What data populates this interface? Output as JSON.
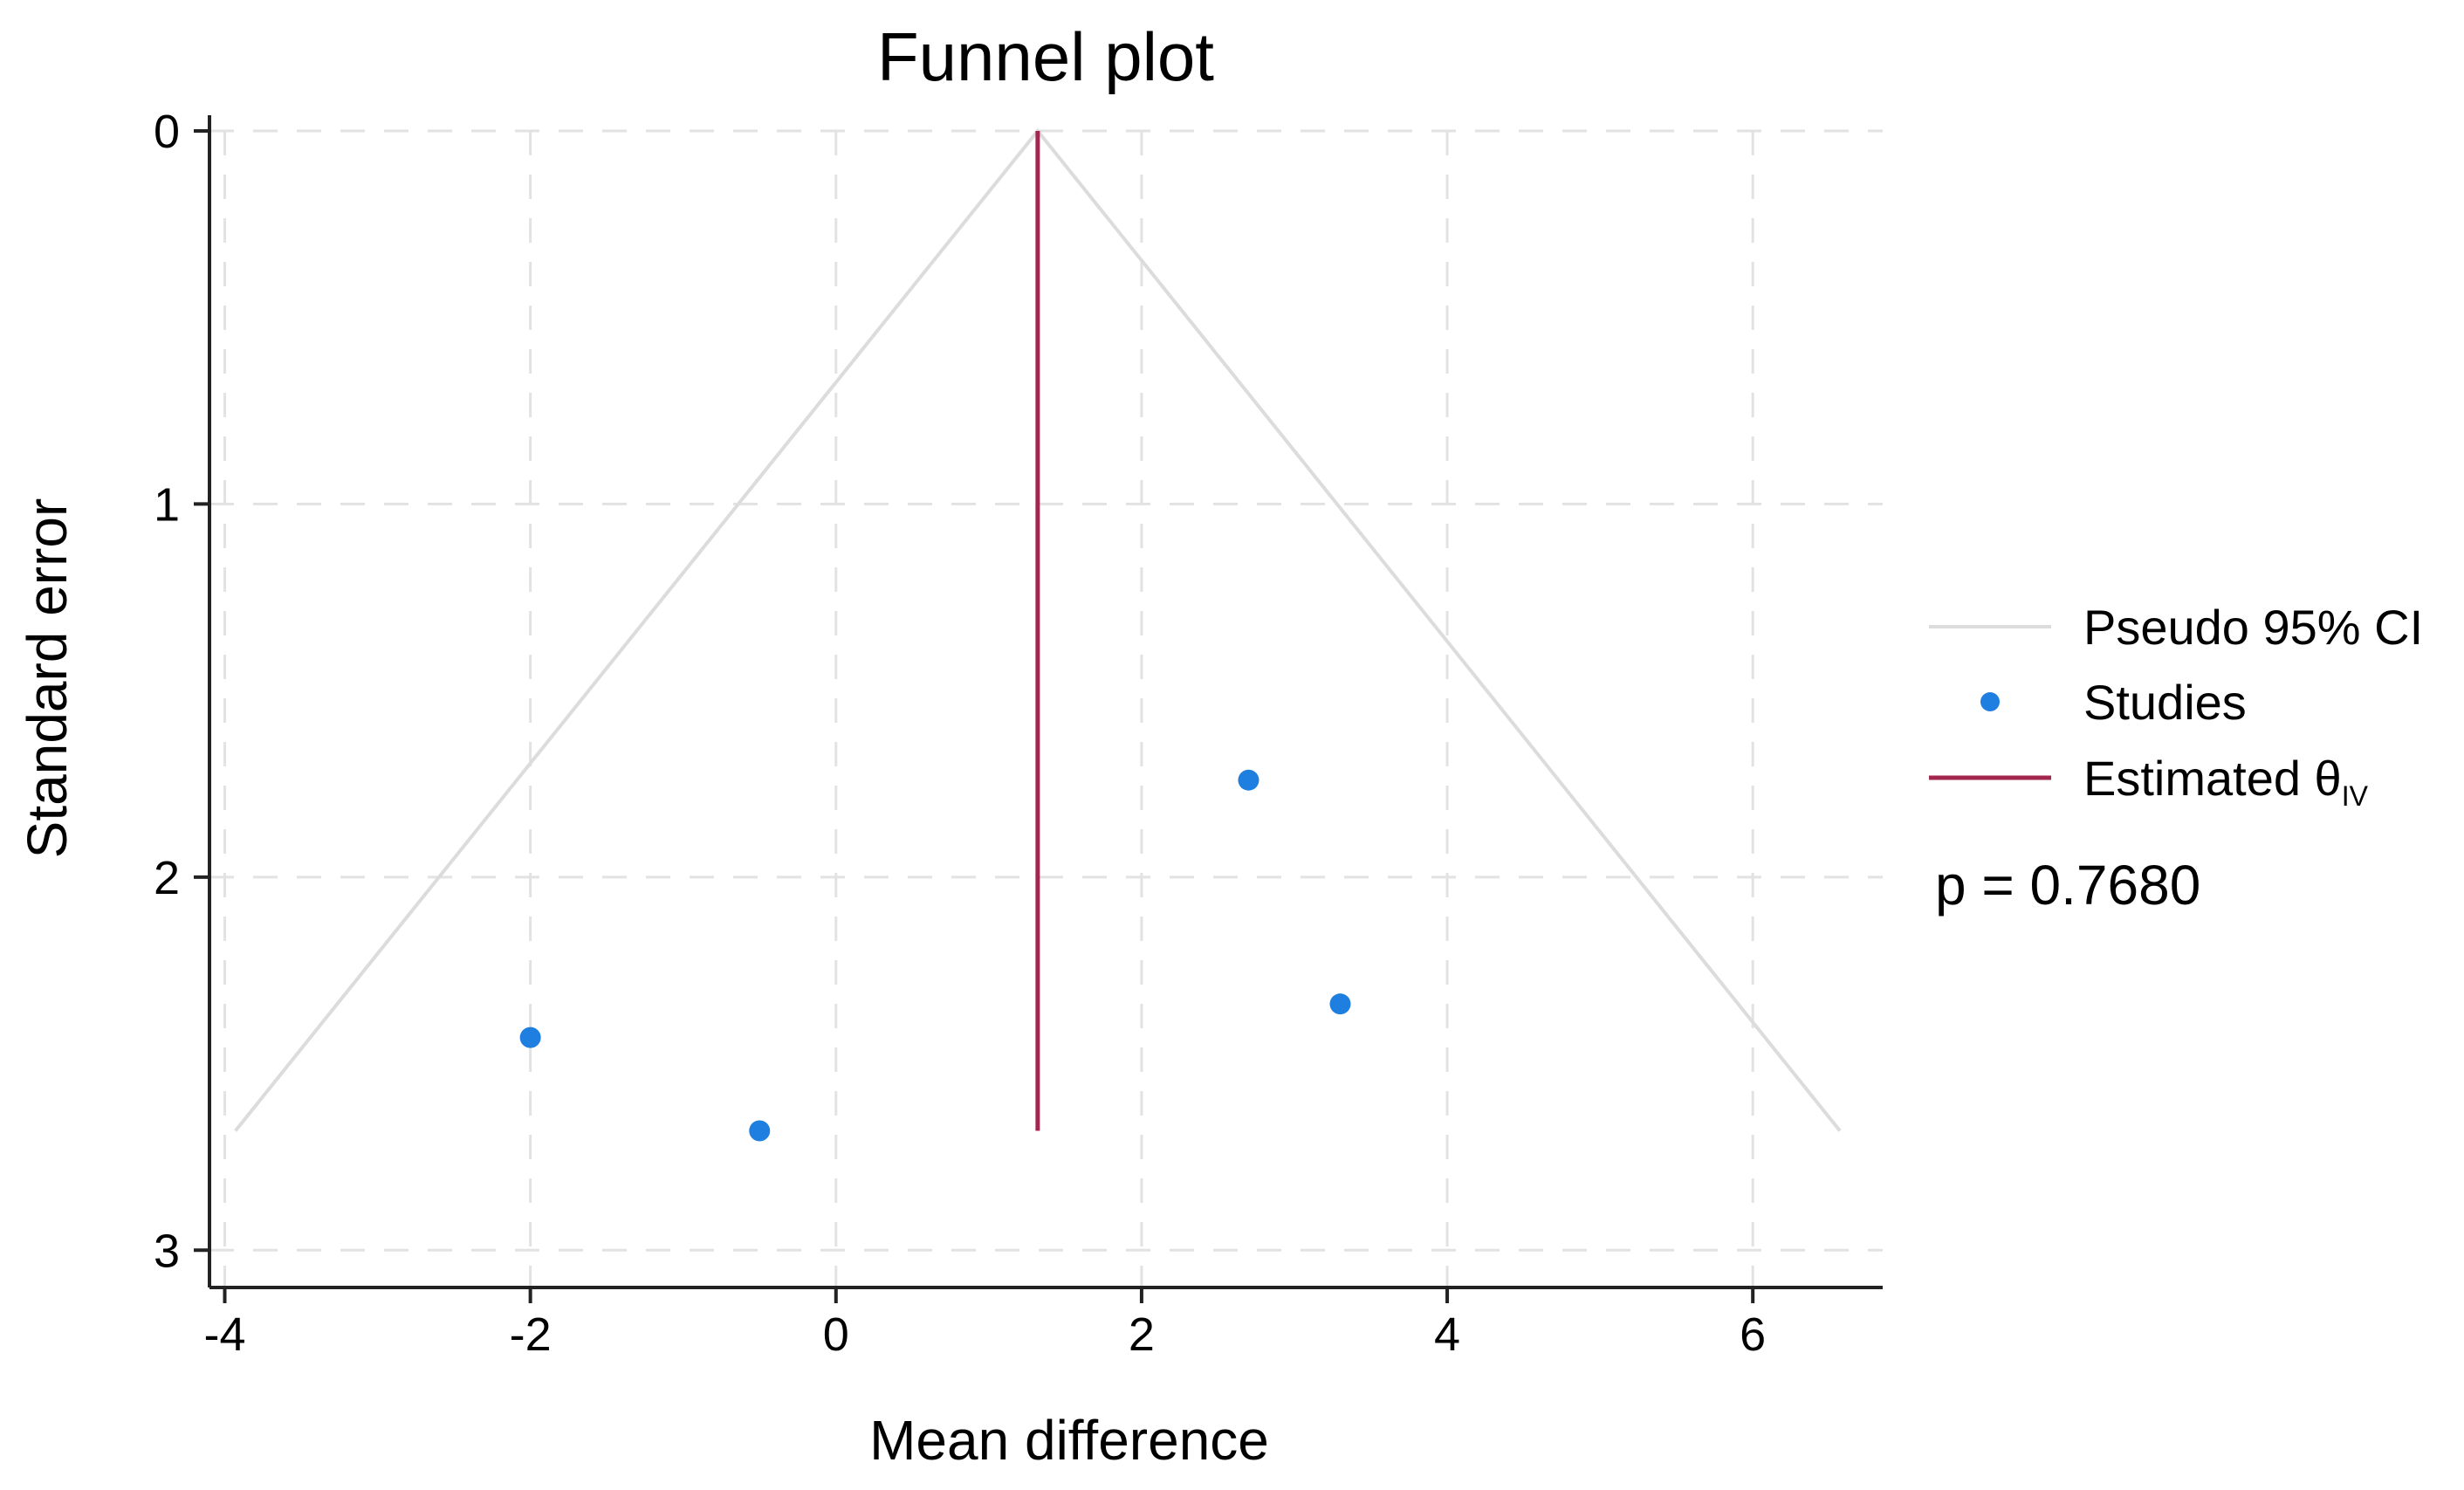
{
  "chart_data": {
    "type": "scatter",
    "title": "Funnel plot",
    "xlabel": "Mean difference",
    "ylabel": "Standard error",
    "xlim": [
      -4.1,
      6.85
    ],
    "ylim": [
      0,
      3.1
    ],
    "y_inverted": true,
    "x_ticks": [
      -4,
      -2,
      0,
      2,
      4,
      6
    ],
    "x_tick_labels": [
      "-4",
      "-2",
      "0",
      "2",
      "4",
      "6"
    ],
    "y_ticks": [
      0,
      1,
      2,
      3
    ],
    "y_tick_labels": [
      "0",
      "1",
      "2",
      "3"
    ],
    "grid": true,
    "estimated_effect": 1.32,
    "se_max": 2.68,
    "series": [
      {
        "name": "Pseudo 95% CI",
        "kind": "line",
        "points": [
          [
            -3.93,
            2.68
          ],
          [
            1.32,
            0
          ],
          [
            6.57,
            2.68
          ]
        ]
      },
      {
        "name": "Studies",
        "kind": "scatter",
        "x": [
          -2.0,
          -0.5,
          2.7,
          3.3
        ],
        "y": [
          2.43,
          2.68,
          1.74,
          2.34
        ]
      },
      {
        "name": "Estimated θ",
        "subscript": "IV",
        "kind": "vline",
        "x": 1.32,
        "y_range": [
          0,
          2.68
        ]
      }
    ],
    "legend": {
      "position": "right",
      "items": [
        {
          "label": "Pseudo 95% CI",
          "symbol": "line"
        },
        {
          "label": "Studies",
          "symbol": "dot"
        },
        {
          "label": "Estimated θ",
          "subscript": "IV",
          "symbol": "line"
        }
      ]
    },
    "annotation": "p = 0.7680"
  },
  "colors": {
    "ci_line": "#dcdcdc",
    "studies": "#1e7fe0",
    "estimate": "#a3264f",
    "axis": "#222222",
    "grid": "#e2e2e2"
  }
}
